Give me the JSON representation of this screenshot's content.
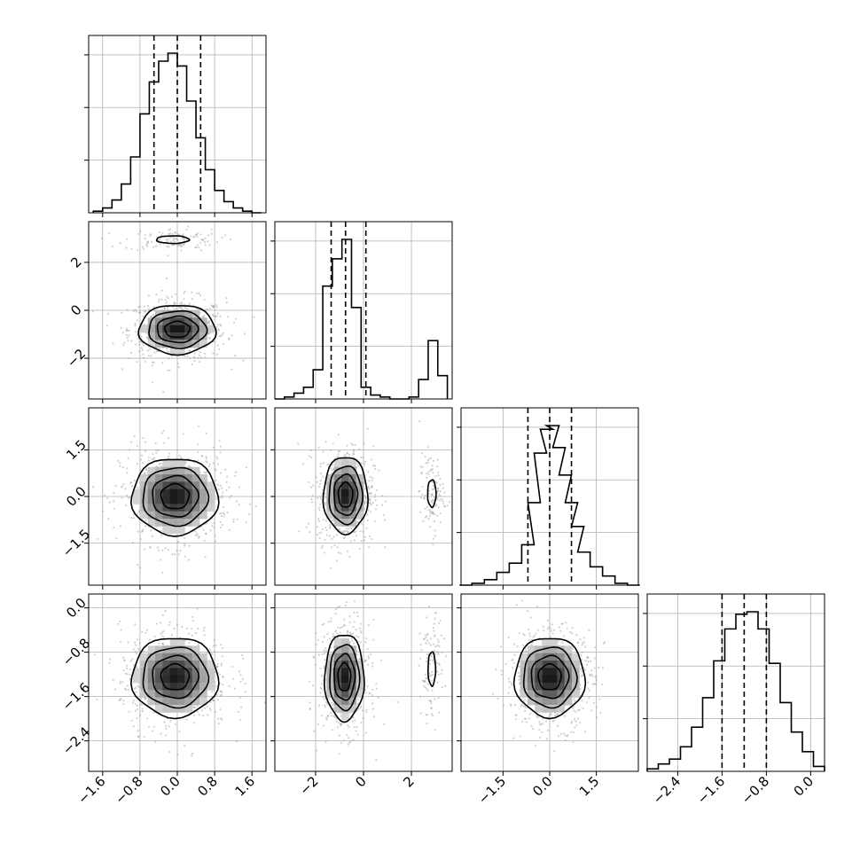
{
  "chart_data": {
    "type": "corner",
    "title": "",
    "params": [
      {
        "name": "",
        "range": [
          -1.9,
          1.9
        ],
        "ticks": [
          -1.6,
          -0.8,
          0.0,
          0.8,
          1.6
        ],
        "tick_labels": [
          "−1.6",
          "−0.8",
          "0.0",
          "0.8",
          "1.6"
        ],
        "quantiles": [
          -0.5,
          0.0,
          0.5
        ]
      },
      {
        "name": "",
        "range": [
          -3.7,
          3.7
        ],
        "ticks": [
          -2,
          0,
          2
        ],
        "tick_labels": [
          "−2",
          "0",
          "2"
        ],
        "quantiles": [
          -1.35,
          -0.75,
          0.1
        ]
      },
      {
        "name": "",
        "range": [
          -2.85,
          2.85
        ],
        "ticks": [
          -1.5,
          0.0,
          1.5
        ],
        "tick_labels": [
          "−1.5",
          "0.0",
          "1.5"
        ],
        "quantiles": [
          -0.7,
          0.0,
          0.7
        ]
      },
      {
        "name": "",
        "range": [
          -2.95,
          0.25
        ],
        "ticks": [
          -2.4,
          -1.6,
          -0.8,
          0.0
        ],
        "tick_labels": [
          "−2.4",
          "−1.6",
          "−0.8",
          "0.0"
        ],
        "quantiles": [
          -1.6,
          -1.2,
          -0.8
        ]
      }
    ],
    "marginals": [
      {
        "param": 0,
        "x": [
          -1.7,
          -1.5,
          -1.3,
          -1.1,
          -0.9,
          -0.7,
          -0.5,
          -0.3,
          -0.1,
          0.1,
          0.3,
          0.5,
          0.7,
          0.9,
          1.1,
          1.3,
          1.5,
          1.7
        ],
        "counts": [
          1,
          3,
          8,
          18,
          35,
          62,
          82,
          95,
          100,
          92,
          70,
          47,
          27,
          14,
          7,
          3,
          1,
          0
        ]
      },
      {
        "param": 1,
        "x": [
          -3.5,
          -3.1,
          -2.7,
          -2.3,
          -1.9,
          -1.5,
          -1.1,
          -0.7,
          -0.3,
          0.1,
          0.5,
          0.9,
          1.3,
          1.7,
          2.1,
          2.5,
          2.9,
          3.3
        ],
        "counts": [
          0,
          1,
          3,
          6,
          15,
          58,
          72,
          82,
          47,
          6,
          2,
          1,
          0,
          0,
          1,
          10,
          30,
          12
        ]
      },
      {
        "param": 2,
        "x": [
          -2.7,
          -2.3,
          -1.9,
          -1.5,
          -1.1,
          -0.7,
          -0.5,
          -0.3,
          -0.1,
          0.1,
          0.3,
          0.5,
          0.7,
          0.9,
          1.1,
          1.5,
          1.9,
          2.3,
          2.7
        ],
        "counts": [
          0,
          1,
          3,
          7,
          12,
          22,
          45,
          72,
          85,
          87,
          75,
          60,
          45,
          32,
          18,
          10,
          5,
          1,
          0
        ]
      },
      {
        "param": 3,
        "x": [
          -2.85,
          -2.65,
          -2.45,
          -2.25,
          -2.05,
          -1.85,
          -1.65,
          -1.45,
          -1.25,
          -1.05,
          -0.85,
          -0.65,
          -0.45,
          -0.25,
          -0.05,
          0.15
        ],
        "counts": [
          1,
          3,
          5,
          10,
          18,
          30,
          45,
          58,
          64,
          65,
          58,
          44,
          28,
          16,
          8,
          2
        ]
      }
    ],
    "joints": [
      {
        "x_param": 0,
        "y_param": 1,
        "modes": [
          {
            "center": [
              0.0,
              -0.8
            ],
            "sigma": [
              0.4,
              0.5
            ],
            "weight": 0.85
          },
          {
            "center": [
              -0.1,
              2.95
            ],
            "sigma": [
              0.4,
              0.18
            ],
            "weight": 0.15
          }
        ]
      },
      {
        "x_param": 0,
        "y_param": 2,
        "modes": [
          {
            "center": [
              -0.05,
              0.0
            ],
            "sigma": [
              0.45,
              0.6
            ],
            "weight": 1.0
          }
        ]
      },
      {
        "x_param": 1,
        "y_param": 2,
        "modes": [
          {
            "center": [
              -0.75,
              0.05
            ],
            "sigma": [
              0.45,
              0.6
            ],
            "weight": 0.85
          },
          {
            "center": [
              2.85,
              0.1
            ],
            "sigma": [
              0.2,
              0.5
            ],
            "weight": 0.15
          }
        ]
      },
      {
        "x_param": 0,
        "y_param": 3,
        "modes": [
          {
            "center": [
              -0.05,
              -1.25
            ],
            "sigma": [
              0.45,
              0.35
            ],
            "weight": 1.0
          }
        ]
      },
      {
        "x_param": 1,
        "y_param": 3,
        "modes": [
          {
            "center": [
              -0.8,
              -1.25
            ],
            "sigma": [
              0.4,
              0.38
            ],
            "weight": 0.85
          },
          {
            "center": [
              2.85,
              -1.1
            ],
            "sigma": [
              0.18,
              0.35
            ],
            "weight": 0.15
          }
        ]
      },
      {
        "x_param": 2,
        "y_param": 3,
        "modes": [
          {
            "center": [
              0.0,
              -1.25
            ],
            "sigma": [
              0.55,
              0.35
            ],
            "weight": 1.0
          }
        ]
      }
    ],
    "contour_levels": [
      0.12,
      0.3,
      0.55,
      0.8
    ],
    "grid": true,
    "quantile_style": "dashed"
  }
}
